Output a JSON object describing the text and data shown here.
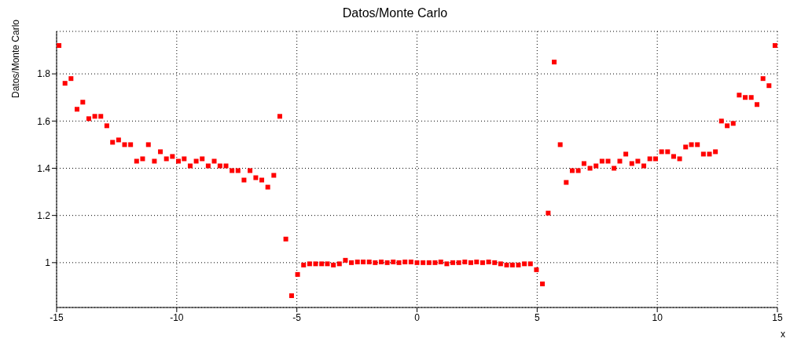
{
  "chart_data": {
    "type": "scatter",
    "title": "Datos/Monte Carlo",
    "xlabel": "x",
    "ylabel": "Datos/Monte Carlo",
    "x": [
      -14.9,
      -14.65,
      -14.4,
      -14.15,
      -13.91,
      -13.66,
      -13.41,
      -13.16,
      -12.91,
      -12.67,
      -12.42,
      -12.17,
      -11.92,
      -11.67,
      -11.42,
      -11.18,
      -10.93,
      -10.68,
      -10.43,
      -10.18,
      -9.93,
      -9.69,
      -9.44,
      -9.19,
      -8.94,
      -8.69,
      -8.44,
      -8.2,
      -7.95,
      -7.7,
      -7.45,
      -7.2,
      -6.95,
      -6.71,
      -6.46,
      -6.21,
      -5.96,
      -5.71,
      -5.46,
      -5.22,
      -4.97,
      -4.72,
      -4.47,
      -4.22,
      -3.97,
      -3.73,
      -3.48,
      -3.23,
      -2.98,
      -2.73,
      -2.48,
      -2.24,
      -1.99,
      -1.74,
      -1.49,
      -1.24,
      -0.99,
      -0.75,
      -0.5,
      -0.25,
      0.0,
      0.25,
      0.5,
      0.75,
      0.99,
      1.24,
      1.49,
      1.74,
      1.99,
      2.24,
      2.48,
      2.73,
      2.98,
      3.23,
      3.48,
      3.73,
      3.97,
      4.22,
      4.47,
      4.72,
      4.97,
      5.22,
      5.46,
      5.71,
      5.96,
      6.21,
      6.46,
      6.71,
      6.95,
      7.2,
      7.45,
      7.7,
      7.95,
      8.2,
      8.44,
      8.69,
      8.94,
      9.19,
      9.44,
      9.69,
      9.93,
      10.18,
      10.43,
      10.68,
      10.93,
      11.18,
      11.42,
      11.67,
      11.92,
      12.17,
      12.42,
      12.67,
      12.91,
      13.16,
      13.41,
      13.66,
      13.91,
      14.15,
      14.4,
      14.65,
      14.9
    ],
    "series": [
      {
        "color": "#ff0000",
        "values": [
          1.92,
          1.76,
          1.78,
          1.65,
          1.68,
          1.61,
          1.62,
          1.62,
          1.58,
          1.51,
          1.52,
          1.5,
          1.5,
          1.43,
          1.44,
          1.5,
          1.43,
          1.47,
          1.44,
          1.45,
          1.43,
          1.44,
          1.41,
          1.43,
          1.44,
          1.41,
          1.43,
          1.41,
          1.41,
          1.39,
          1.39,
          1.35,
          1.39,
          1.36,
          1.35,
          1.32,
          1.37,
          1.62,
          1.1,
          0.86,
          0.95,
          0.99,
          0.995,
          0.995,
          0.995,
          0.995,
          0.99,
          0.995,
          1.01,
          1.0,
          1.003,
          1.003,
          1.003,
          1.0,
          1.003,
          1.0,
          1.003,
          1.0,
          1.003,
          1.003,
          1.0,
          1.0,
          1.0,
          1.0,
          1.003,
          0.995,
          1.0,
          1.0,
          1.003,
          1.0,
          1.003,
          1.0,
          1.003,
          1.0,
          0.995,
          0.99,
          0.99,
          0.99,
          0.995,
          0.995,
          0.97,
          0.91,
          1.21,
          1.85,
          1.5,
          1.34,
          1.39,
          1.39,
          1.42,
          1.4,
          1.41,
          1.43,
          1.43,
          1.4,
          1.43,
          1.46,
          1.42,
          1.43,
          1.41,
          1.44,
          1.44,
          1.47,
          1.47,
          1.45,
          1.44,
          1.49,
          1.5,
          1.5,
          1.46,
          1.46,
          1.47,
          1.6,
          1.58,
          1.59,
          1.71,
          1.7,
          1.7,
          1.67,
          1.78,
          1.75,
          1.92
        ]
      }
    ],
    "xlim": [
      -15,
      15
    ],
    "xticks": [
      -15,
      -10,
      -5,
      0,
      5,
      10,
      15
    ],
    "ylim": [
      0.81,
      1.98
    ],
    "yticks": [
      1,
      1.2,
      1.4,
      1.6,
      1.8
    ],
    "grid": true,
    "marker": "square"
  }
}
